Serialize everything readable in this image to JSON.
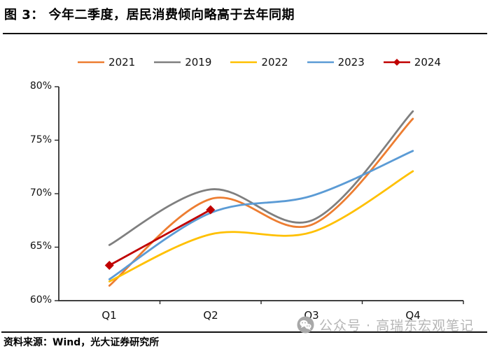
{
  "title": "图 3：  今年二季度，居民消费倾向略高于去年同期",
  "source": "资料来源：Wind，光大证券研究所",
  "watermark": {
    "icon": "wechat-icon",
    "text": "公众号 · 高瑞东宏观笔记",
    "color": "#b5b5b5"
  },
  "chart_data": {
    "type": "line",
    "smooth": true,
    "categories": [
      "Q1",
      "Q2",
      "Q3",
      "Q4"
    ],
    "y_tick_labels": [
      "80%",
      "75%",
      "70%",
      "65%",
      "60%"
    ],
    "y_tick_values": [
      80,
      75,
      70,
      65,
      60
    ],
    "ylim": [
      60,
      80
    ],
    "grid": false,
    "legend_position": "top",
    "series": [
      {
        "name": "2021",
        "color": "#ED7D31",
        "marker": "none",
        "values": [
          61.4,
          69.5,
          67.1,
          77.0
        ]
      },
      {
        "name": "2019",
        "color": "#7F7F7F",
        "marker": "none",
        "values": [
          65.2,
          70.4,
          67.5,
          77.7
        ]
      },
      {
        "name": "2022",
        "color": "#FFC000",
        "marker": "none",
        "values": [
          61.8,
          66.2,
          66.4,
          72.1
        ]
      },
      {
        "name": "2023",
        "color": "#5B9BD5",
        "marker": "none",
        "values": [
          62.0,
          68.2,
          69.8,
          74.0
        ]
      },
      {
        "name": "2024",
        "color": "#C00000",
        "marker": "diamond",
        "values": [
          63.3,
          68.5,
          null,
          null
        ]
      }
    ]
  }
}
